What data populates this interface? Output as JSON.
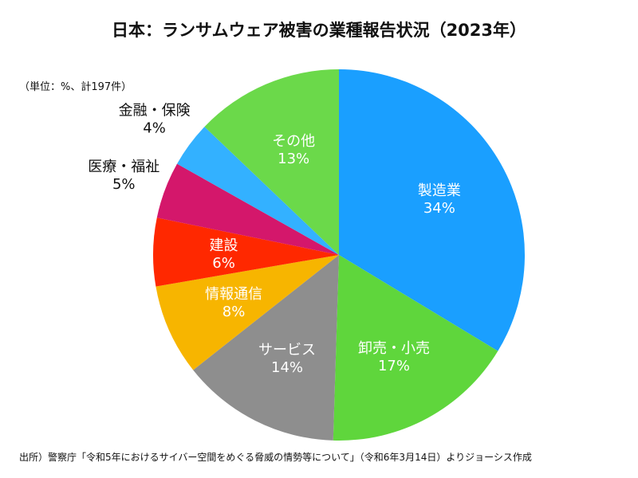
{
  "chart_data": {
    "type": "pie",
    "title": "日本：ランサムウェア被害の業種報告状況（2023年）",
    "unit_note": "（単位：%、計197件）",
    "source": "出所）警察庁「令和5年におけるサイバー空間をめぐる脅威の情勢等について」（令和6年3月14日）よりジョーシス作成",
    "slices": [
      {
        "name": "製造業",
        "value": 34,
        "label": "34%",
        "color": "#1a9fff",
        "label_color": "#ffffff",
        "outside": false
      },
      {
        "name": "卸売・小売",
        "value": 17,
        "label": "17%",
        "color": "#5fd63c",
        "label_color": "#ffffff",
        "outside": false
      },
      {
        "name": "サービス",
        "value": 14,
        "label": "14%",
        "color": "#8e8e8e",
        "label_color": "#ffffff",
        "outside": false
      },
      {
        "name": "情報通信",
        "value": 8,
        "label": "8%",
        "color": "#f7b500",
        "label_color": "#ffffff",
        "outside": false
      },
      {
        "name": "建設",
        "value": 6,
        "label": "6%",
        "color": "#ff2800",
        "label_color": "#ffffff",
        "outside": false
      },
      {
        "name": "医療・福祉",
        "value": 5,
        "label": "5%",
        "color": "#d4176b",
        "label_color": "#111111",
        "outside": true
      },
      {
        "name": "金融・保険",
        "value": 4,
        "label": "4%",
        "color": "#33b1ff",
        "label_color": "#111111",
        "outside": true
      },
      {
        "name": "その他",
        "value": 13,
        "label": "13%",
        "color": "#6bd94a",
        "label_color": "#ffffff",
        "outside": false
      }
    ]
  }
}
